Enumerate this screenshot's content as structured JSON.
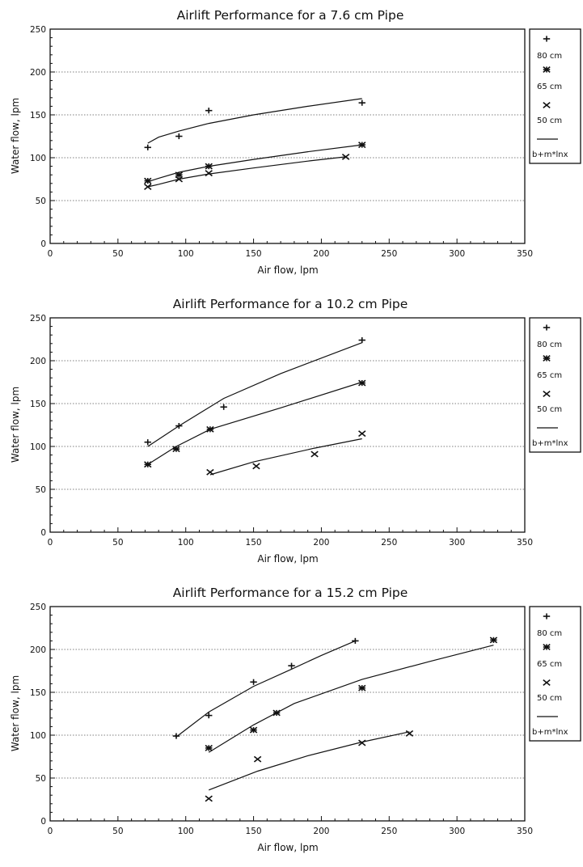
{
  "chart_data": [
    {
      "type": "scatter",
      "title": "Airlift Performance for a 7.6 cm Pipe",
      "xlabel": "Air flow,  lpm",
      "ylabel": "Water flow,  lpm",
      "xlim": [
        0,
        350
      ],
      "ylim": [
        0,
        250
      ],
      "x_ticks": [
        0,
        50,
        100,
        150,
        200,
        250,
        300,
        350
      ],
      "y_ticks": [
        0,
        50,
        100,
        150,
        200,
        250
      ],
      "grid": "horizontal dotted",
      "legend_position": "right",
      "series": [
        {
          "name": "80 cm",
          "marker": "plus",
          "x": [
            72,
            95,
            117,
            230
          ],
          "y": [
            112,
            125,
            155,
            164
          ]
        },
        {
          "name": "65 cm",
          "marker": "asterisk",
          "x": [
            72,
            95,
            117,
            230
          ],
          "y": [
            73,
            80,
            90,
            115
          ]
        },
        {
          "name": "50 cm",
          "marker": "x",
          "x": [
            72,
            95,
            117,
            218
          ],
          "y": [
            66,
            75,
            82,
            101
          ]
        }
      ],
      "fits": [
        {
          "name": "b+m*lnx",
          "x": [
            72,
            80,
            95,
            117,
            150,
            190,
            230
          ],
          "y": [
            117,
            124,
            131,
            140,
            150,
            160,
            169
          ]
        },
        {
          "name": "b+m*lnx",
          "x": [
            72,
            80,
            95,
            117,
            150,
            190,
            230
          ],
          "y": [
            72,
            76,
            83,
            90,
            98,
            107,
            115
          ]
        },
        {
          "name": "b+m*lnx",
          "x": [
            72,
            80,
            95,
            117,
            150,
            190,
            218
          ],
          "y": [
            66,
            69,
            75,
            81,
            88,
            96,
            101
          ]
        }
      ],
      "fit_legend": "b+m*lnx"
    },
    {
      "type": "scatter",
      "title": "Airlift Performance for a 10.2 cm Pipe",
      "xlabel": "Air flow,  lpm",
      "ylabel": "Water flow,  lpm",
      "xlim": [
        0,
        350
      ],
      "ylim": [
        0,
        250
      ],
      "x_ticks": [
        0,
        50,
        100,
        150,
        200,
        250,
        300,
        350
      ],
      "y_ticks": [
        0,
        50,
        100,
        150,
        200,
        250
      ],
      "grid": "horizontal dotted",
      "legend_position": "right",
      "series": [
        {
          "name": "80 cm",
          "marker": "plus",
          "x": [
            72,
            95,
            128,
            230
          ],
          "y": [
            105,
            124,
            146,
            224
          ]
        },
        {
          "name": "65 cm",
          "marker": "asterisk",
          "x": [
            72,
            93,
            118,
            230
          ],
          "y": [
            79,
            97,
            120,
            174
          ]
        },
        {
          "name": "50 cm",
          "marker": "x",
          "x": [
            118,
            152,
            195,
            230
          ],
          "y": [
            70,
            77,
            91,
            115
          ]
        }
      ],
      "fits": [
        {
          "name": "b+m*lnx",
          "x": [
            72,
            95,
            128,
            170,
            230
          ],
          "y": [
            100,
            124,
            156,
            185,
            221
          ]
        },
        {
          "name": "b+m*lnx",
          "x": [
            72,
            93,
            118,
            170,
            230
          ],
          "y": [
            79,
            100,
            120,
            145,
            175
          ]
        },
        {
          "name": "b+m*lnx",
          "x": [
            118,
            150,
            195,
            230
          ],
          "y": [
            67,
            82,
            98,
            109
          ]
        }
      ],
      "fit_legend": "b+m*lnx"
    },
    {
      "type": "scatter",
      "title": "Airlift Performance for a 15.2 cm Pipe",
      "xlabel": "Air flow,  lpm",
      "ylabel": "Water flow,  lpm",
      "xlim": [
        0,
        350
      ],
      "ylim": [
        0,
        250
      ],
      "x_ticks": [
        0,
        50,
        100,
        150,
        200,
        250,
        300,
        350
      ],
      "y_ticks": [
        0,
        50,
        100,
        150,
        200,
        250
      ],
      "grid": "horizontal dotted",
      "legend_position": "right",
      "series": [
        {
          "name": "80 cm",
          "marker": "plus",
          "x": [
            93,
            117,
            150,
            178,
            225
          ],
          "y": [
            99,
            123,
            162,
            181,
            210
          ]
        },
        {
          "name": "65 cm",
          "marker": "asterisk",
          "x": [
            117,
            150,
            167,
            230,
            327
          ],
          "y": [
            85,
            106,
            126,
            155,
            211
          ]
        },
        {
          "name": "50 cm",
          "marker": "x",
          "x": [
            117,
            153,
            230,
            265
          ],
          "y": [
            26,
            72,
            91,
            102
          ]
        }
      ],
      "fits": [
        {
          "name": "b+m*lnx",
          "x": [
            93,
            117,
            150,
            178,
            200,
            225
          ],
          "y": [
            98,
            127,
            157,
            177,
            193,
            210
          ]
        },
        {
          "name": "b+m*lnx",
          "x": [
            117,
            150,
            180,
            230,
            280,
            327
          ],
          "y": [
            80,
            112,
            137,
            165,
            186,
            205
          ]
        },
        {
          "name": "b+m*lnx",
          "x": [
            117,
            153,
            190,
            230,
            265
          ],
          "y": [
            36,
            58,
            76,
            92,
            104
          ]
        }
      ],
      "fit_legend": "b+m*lnx"
    }
  ]
}
